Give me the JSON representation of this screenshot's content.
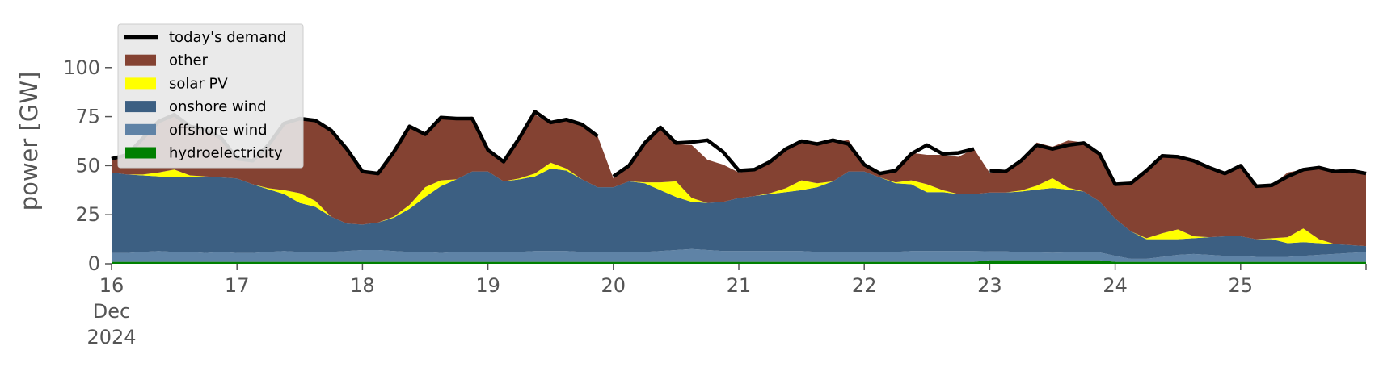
{
  "chart_data": {
    "type": "area",
    "title": "",
    "xlabel": "",
    "ylabel": "power [GW]",
    "ylim": [
      0,
      118
    ],
    "y_ticks": [
      0,
      25,
      50,
      75,
      100
    ],
    "y_tick_labels": [
      "0",
      "25",
      "50",
      "75",
      "100"
    ],
    "x_range": [
      "2024-12-16T00:00",
      "2024-12-26T00:00"
    ],
    "x_ticks": [
      {
        "x": "2024-12-16",
        "label": "16",
        "sub1": "Dec",
        "sub2": "2024"
      },
      {
        "x": "2024-12-17",
        "label": "17"
      },
      {
        "x": "2024-12-18",
        "label": "18"
      },
      {
        "x": "2024-12-19",
        "label": "19"
      },
      {
        "x": "2024-12-20",
        "label": "20"
      },
      {
        "x": "2024-12-21",
        "label": "21"
      },
      {
        "x": "2024-12-22",
        "label": "22"
      },
      {
        "x": "2024-12-23",
        "label": "23"
      },
      {
        "x": "2024-12-24",
        "label": "24"
      },
      {
        "x": "2024-12-25",
        "label": "25"
      },
      {
        "x": "2024-12-26",
        "label": ""
      }
    ],
    "grid": false,
    "legend": {
      "position": "top-left",
      "entries": [
        {
          "label": "today's demand",
          "kind": "line",
          "color": "#000000"
        },
        {
          "label": "other",
          "kind": "patch",
          "color": "#844232"
        },
        {
          "label": "solar PV",
          "kind": "patch",
          "color": "#ffff00"
        },
        {
          "label": "onshore wind",
          "kind": "patch",
          "color": "#3c5f82"
        },
        {
          "label": "offshore wind",
          "kind": "patch",
          "color": "#5f83a6"
        },
        {
          "label": "hydroelectricity",
          "kind": "patch",
          "color": "#008000"
        }
      ]
    },
    "colors": {
      "other": "#844232",
      "solar_pv": "#ffff00",
      "onshore_wind": "#3c5f82",
      "offshore_wind": "#5f83a6",
      "hydroelectricity": "#008000",
      "demand": "#000000"
    },
    "stack_order": [
      "hydroelectricity",
      "offshore_wind",
      "onshore_wind",
      "solar_pv",
      "other"
    ],
    "x": [
      "2024-12-16T00:00",
      "2024-12-16T03:00",
      "2024-12-16T06:00",
      "2024-12-16T09:00",
      "2024-12-16T12:00",
      "2024-12-16T15:00",
      "2024-12-16T18:00",
      "2024-12-16T21:00",
      "2024-12-17T00:00",
      "2024-12-17T03:00",
      "2024-12-17T06:00",
      "2024-12-17T09:00",
      "2024-12-17T12:00",
      "2024-12-17T15:00",
      "2024-12-17T18:00",
      "2024-12-17T21:00",
      "2024-12-18T00:00",
      "2024-12-18T03:00",
      "2024-12-18T06:00",
      "2024-12-18T09:00",
      "2024-12-18T12:00",
      "2024-12-18T15:00",
      "2024-12-18T18:00",
      "2024-12-18T21:00",
      "2024-12-19T00:00",
      "2024-12-19T03:00",
      "2024-12-19T06:00",
      "2024-12-19T09:00",
      "2024-12-19T12:00",
      "2024-12-19T15:00",
      "2024-12-19T18:00",
      "2024-12-19T21:00",
      "2024-12-20T00:00",
      "2024-12-20T03:00",
      "2024-12-20T06:00",
      "2024-12-20T09:00",
      "2024-12-20T12:00",
      "2024-12-20T15:00",
      "2024-12-20T18:00",
      "2024-12-20T21:00",
      "2024-12-21T00:00",
      "2024-12-21T03:00",
      "2024-12-21T06:00",
      "2024-12-21T09:00",
      "2024-12-21T12:00",
      "2024-12-21T15:00",
      "2024-12-21T18:00",
      "2024-12-21T21:00",
      "2024-12-22T00:00",
      "2024-12-22T03:00",
      "2024-12-22T06:00",
      "2024-12-22T09:00",
      "2024-12-22T12:00",
      "2024-12-22T15:00",
      "2024-12-22T18:00",
      "2024-12-22T21:00",
      "2024-12-23T00:00",
      "2024-12-23T03:00",
      "2024-12-23T06:00",
      "2024-12-23T09:00",
      "2024-12-23T12:00",
      "2024-12-23T15:00",
      "2024-12-23T18:00",
      "2024-12-23T21:00",
      "2024-12-24T00:00",
      "2024-12-24T03:00",
      "2024-12-24T06:00",
      "2024-12-24T09:00",
      "2024-12-24T12:00",
      "2024-12-24T15:00",
      "2024-12-24T18:00",
      "2024-12-24T21:00",
      "2024-12-25T00:00",
      "2024-12-25T03:00",
      "2024-12-25T06:00",
      "2024-12-25T09:00",
      "2024-12-25T12:00",
      "2024-12-25T15:00",
      "2024-12-25T18:00",
      "2024-12-25T21:00",
      "2024-12-26T00:00"
    ],
    "series": [
      {
        "key": "hydroelectricity",
        "name": "hydroelectricity",
        "values": [
          1,
          1,
          1,
          1,
          1,
          1,
          1,
          1,
          1,
          1,
          1,
          1,
          1,
          1,
          1,
          1,
          1,
          1,
          1,
          1,
          1,
          1,
          1,
          1,
          1,
          1,
          1,
          1,
          1,
          1,
          1,
          1,
          1,
          1,
          1,
          1,
          1,
          1,
          1,
          1,
          1,
          1,
          1,
          1,
          1,
          1,
          1,
          1,
          1,
          1,
          1,
          1,
          1,
          1,
          1,
          1,
          1.8,
          1.8,
          1.8,
          1.8,
          1.8,
          1.8,
          1.8,
          1.8,
          1,
          1,
          1,
          1,
          1,
          1,
          1,
          1,
          1,
          1,
          1,
          1,
          1,
          1,
          1,
          1,
          1
        ]
      },
      {
        "key": "offshore_wind",
        "name": "offshore wind",
        "values": [
          4.5,
          4.5,
          5,
          5.5,
          5,
          5,
          4.5,
          5,
          4.5,
          4.5,
          5,
          5.5,
          5,
          5,
          5,
          5.5,
          6,
          6,
          5.5,
          5,
          5,
          4.5,
          5,
          5,
          5,
          5,
          5,
          5.5,
          5.5,
          5.5,
          5,
          5,
          5,
          5,
          5,
          5.5,
          6,
          6.5,
          6,
          5.5,
          5.5,
          5.5,
          5.5,
          5.5,
          5.5,
          5,
          5,
          5,
          5,
          5,
          5,
          5.5,
          5.5,
          5.5,
          5.5,
          5.5,
          4.5,
          4.5,
          4,
          4,
          3.8,
          4,
          4,
          4,
          3,
          1.5,
          1.5,
          2.5,
          3.5,
          4,
          3.5,
          3,
          3,
          2.5,
          2.5,
          2.5,
          3,
          3.5,
          4,
          4.5,
          5
        ]
      },
      {
        "key": "onshore_wind",
        "name": "onshore wind",
        "values": [
          41,
          40,
          39,
          38,
          38,
          38,
          39,
          38,
          38,
          35,
          32,
          29,
          25,
          23,
          18,
          14,
          13,
          14,
          17,
          22,
          28,
          34,
          37,
          41,
          41,
          36,
          37,
          38,
          42,
          41,
          37,
          33,
          33,
          36,
          35,
          31,
          27,
          24,
          24,
          25,
          27,
          28,
          29,
          30,
          31,
          33,
          36,
          41,
          41,
          38,
          35,
          34,
          30,
          30,
          29,
          29,
          30,
          30,
          31,
          32,
          33,
          32,
          31,
          26,
          19,
          14,
          10,
          9,
          8,
          8,
          9,
          10,
          10,
          9,
          9,
          7,
          7,
          6,
          5,
          4,
          3
        ]
      },
      {
        "key": "solar_pv",
        "name": "solar PV",
        "values": [
          0,
          0,
          0.5,
          2,
          4,
          1,
          0,
          0,
          0,
          0,
          0.5,
          2,
          5,
          3,
          0,
          0,
          0,
          0,
          0.5,
          2,
          5,
          3,
          0,
          0,
          0,
          0,
          0.5,
          1.5,
          3,
          1,
          0,
          0,
          0,
          0,
          0.5,
          4,
          8,
          2,
          0,
          0,
          0,
          0,
          0.5,
          2,
          5,
          2,
          0,
          0,
          0,
          0,
          0.5,
          2,
          4,
          1,
          0,
          0,
          0,
          0,
          0.5,
          2,
          5,
          1,
          0,
          0,
          0,
          0,
          0.5,
          3,
          5,
          1,
          0,
          0,
          0,
          0,
          0.5,
          3,
          7,
          2,
          0,
          0,
          0
        ]
      },
      {
        "key": "other",
        "name": "other",
        "values": [
          7,
          10,
          18,
          26,
          28,
          25,
          24,
          20,
          10,
          12,
          22,
          34,
          38,
          42,
          44,
          38,
          27,
          25,
          33,
          40,
          27,
          32,
          31,
          28,
          11,
          10,
          20,
          30,
          20,
          25,
          28,
          26,
          4.5,
          7,
          19,
          28,
          19,
          27,
          22,
          19,
          13,
          13,
          16,
          20,
          20,
          21,
          20,
          16,
          3.5,
          1.5,
          6,
          14,
          15,
          18,
          19,
          23,
          10,
          10,
          16,
          22,
          16,
          24,
          25,
          24,
          17,
          24,
          34,
          40,
          37,
          38,
          35,
          32,
          36,
          27,
          27,
          33,
          30,
          36,
          37,
          38,
          37
        ]
      }
    ],
    "demand": {
      "name": "today's demand",
      "values": [
        53.5,
        55.5,
        64,
        72.5,
        76,
        70,
        68.5,
        64,
        53.5,
        52.5,
        60.5,
        71.5,
        74,
        73,
        68,
        58.5,
        47,
        46,
        57,
        70,
        66,
        74.5,
        74,
        74,
        58,
        52,
        64,
        77.5,
        72,
        73.5,
        71,
        65,
        44.5,
        50,
        61.5,
        69.5,
        61.5,
        62,
        63,
        57,
        47.5,
        48,
        52,
        58.5,
        62.5,
        61,
        63,
        61,
        50.5,
        46,
        47.5,
        56,
        60.5,
        56,
        56.5,
        58.5,
        47.5,
        47,
        52.5,
        60.5,
        58.5,
        60.5,
        61.5,
        56,
        40.5,
        41,
        47.5,
        55,
        54.5,
        52.5,
        49,
        46,
        50,
        39.5,
        40,
        44.5,
        48,
        49,
        47,
        47.5,
        46
      ]
    },
    "demand_gaps": [
      "2024-12-19T22:30",
      "2024-12-22T22:30"
    ]
  }
}
